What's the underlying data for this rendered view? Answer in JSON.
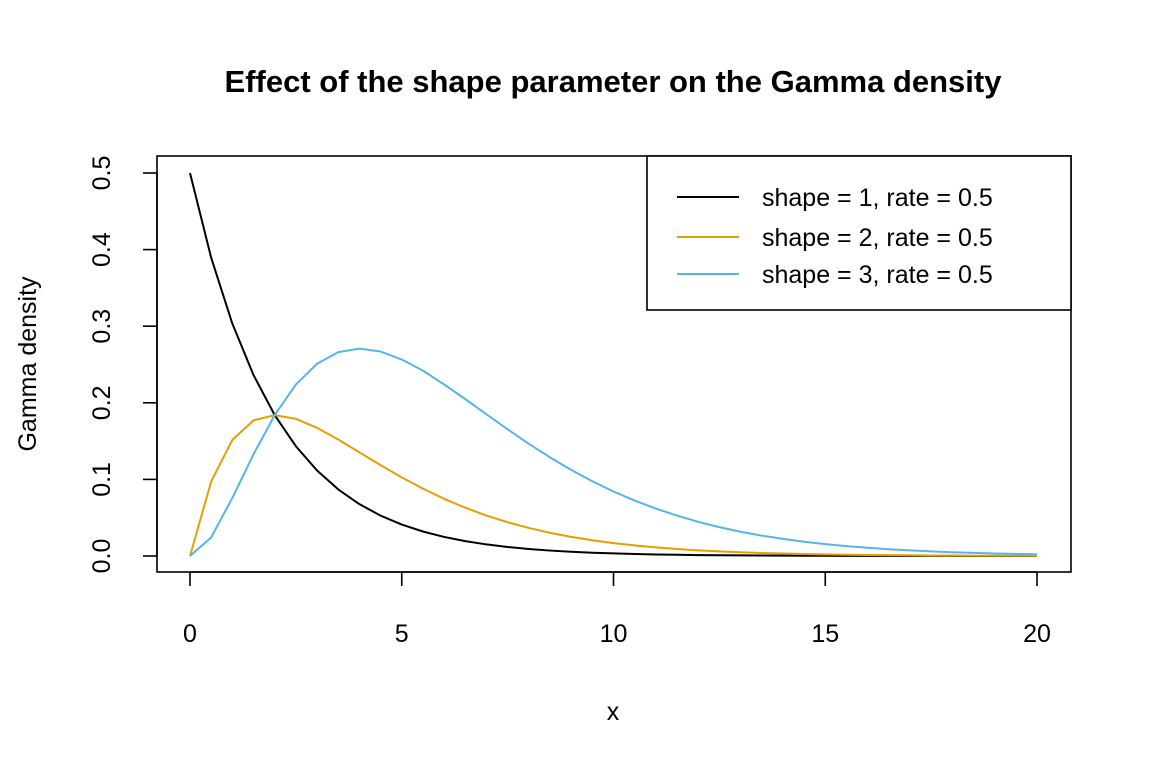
{
  "chart_data": {
    "type": "line",
    "title": "Effect of the shape parameter on the Gamma density",
    "xlabel": "x",
    "ylabel": "Gamma density",
    "xlim": [
      0,
      20
    ],
    "ylim": [
      0,
      0.5
    ],
    "x_ticks": [
      "0",
      "5",
      "10",
      "15",
      "20"
    ],
    "y_ticks": [
      "0.0",
      "0.1",
      "0.2",
      "0.3",
      "0.4",
      "0.5"
    ],
    "grid": false,
    "legend_position": "top-right",
    "x": [
      0,
      0.5,
      1,
      1.5,
      2,
      2.5,
      3,
      3.5,
      4,
      4.5,
      5,
      5.5,
      6,
      6.5,
      7,
      7.5,
      8,
      8.5,
      9,
      9.5,
      10,
      10.5,
      11,
      11.5,
      12,
      12.5,
      13,
      13.5,
      14,
      14.5,
      15,
      15.5,
      16,
      16.5,
      17,
      17.5,
      18,
      18.5,
      19,
      19.5,
      20
    ],
    "series": [
      {
        "name": "shape = 1, rate = 0.5",
        "color": "#000000",
        "values": [
          0.5,
          0.3894,
          0.3033,
          0.2362,
          0.1839,
          0.1433,
          0.1116,
          0.0869,
          0.0677,
          0.0527,
          0.041,
          0.032,
          0.0249,
          0.0194,
          0.0151,
          0.0118,
          0.0092,
          0.0071,
          0.0056,
          0.0043,
          0.0034,
          0.0026,
          0.002,
          0.0016,
          0.0012,
          0.001,
          0.0008,
          0.0006,
          0.0005,
          0.0004,
          0.0003,
          0.0002,
          0.0002,
          0.0001,
          0.0001,
          0.0001,
          0.0001,
          0.0,
          0.0,
          0.0,
          0.0
        ]
      },
      {
        "name": "shape = 2, rate = 0.5",
        "color": "#E69F00",
        "values": [
          0.0,
          0.0973,
          0.1516,
          0.1771,
          0.1839,
          0.1791,
          0.1673,
          0.1521,
          0.1353,
          0.1186,
          0.1026,
          0.088,
          0.0747,
          0.063,
          0.0528,
          0.0441,
          0.0366,
          0.0303,
          0.025,
          0.0206,
          0.0168,
          0.0138,
          0.0113,
          0.0092,
          0.0074,
          0.006,
          0.0049,
          0.004,
          0.0032,
          0.0026,
          0.0021,
          0.0017,
          0.0013,
          0.0011,
          0.0009,
          0.0007,
          0.0006,
          0.0004,
          0.0004,
          0.0003,
          0.0002
        ]
      },
      {
        "name": "shape = 3, rate = 0.5",
        "color": "#56B4E9",
        "values": [
          0.0,
          0.0243,
          0.0758,
          0.1329,
          0.1839,
          0.2239,
          0.251,
          0.2662,
          0.2707,
          0.2669,
          0.2565,
          0.242,
          0.224,
          0.2048,
          0.185,
          0.1654,
          0.1465,
          0.1288,
          0.1124,
          0.0976,
          0.0842,
          0.0724,
          0.0619,
          0.0528,
          0.0446,
          0.0377,
          0.0317,
          0.0266,
          0.0223,
          0.0186,
          0.0155,
          0.0129,
          0.0107,
          0.0088,
          0.0073,
          0.006,
          0.0049,
          0.0041,
          0.0033,
          0.0027,
          0.0023
        ]
      }
    ]
  }
}
